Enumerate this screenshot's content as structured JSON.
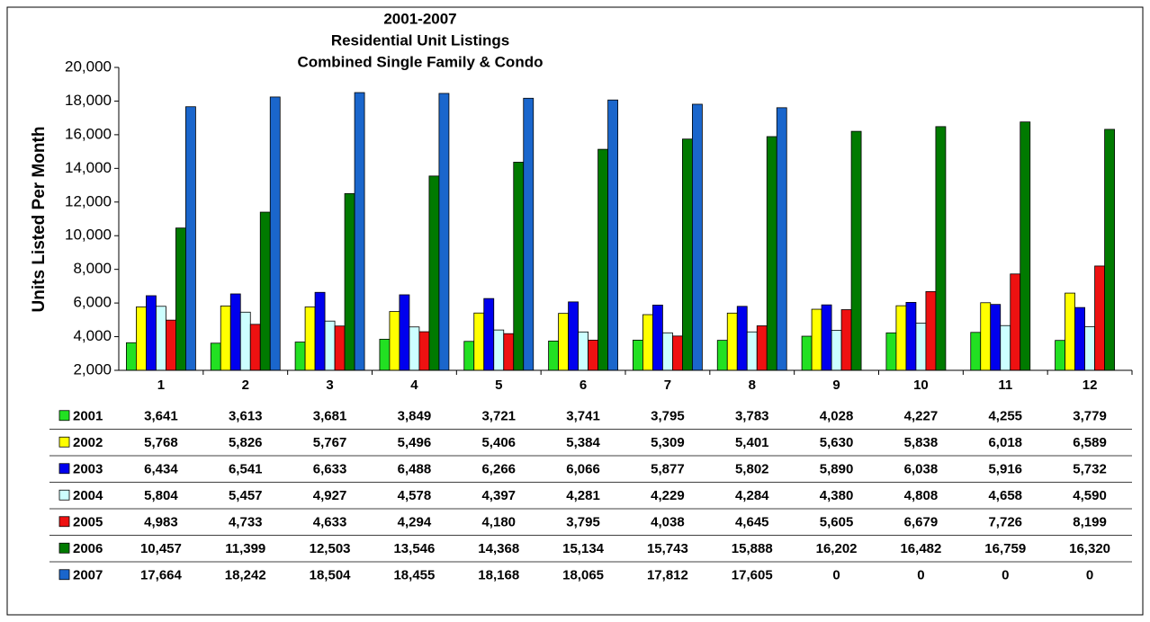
{
  "chart_data": {
    "type": "bar",
    "title_lines": [
      "2001-2007",
      "Residential Unit Listings",
      "Combined Single Family & Condo"
    ],
    "y_label": "Units Listed Per Month",
    "categories": [
      "1",
      "2",
      "3",
      "4",
      "5",
      "6",
      "7",
      "8",
      "9",
      "10",
      "11",
      "12"
    ],
    "ylim": [
      2000,
      20000
    ],
    "yticks": [
      {
        "value": 2000,
        "label": "2,000"
      },
      {
        "value": 4000,
        "label": "4,000"
      },
      {
        "value": 6000,
        "label": "6,000"
      },
      {
        "value": 8000,
        "label": "8,000"
      },
      {
        "value": 10000,
        "label": "10,000"
      },
      {
        "value": 12000,
        "label": "12,000"
      },
      {
        "value": 14000,
        "label": "14,000"
      },
      {
        "value": 16000,
        "label": "16,000"
      },
      {
        "value": 18000,
        "label": "18,000"
      },
      {
        "value": 20000,
        "label": "20,000"
      }
    ],
    "data_table": true,
    "series": [
      {
        "name": "2001",
        "color": "#22e022",
        "values": [
          3641,
          3613,
          3681,
          3849,
          3721,
          3741,
          3795,
          3783,
          4028,
          4227,
          4255,
          3779
        ],
        "value_labels": [
          "3,641",
          "3,613",
          "3,681",
          "3,849",
          "3,721",
          "3,741",
          "3,795",
          "3,783",
          "4,028",
          "4,227",
          "4,255",
          "3,779"
        ]
      },
      {
        "name": "2002",
        "color": "#ffff00",
        "values": [
          5768,
          5826,
          5767,
          5496,
          5406,
          5384,
          5309,
          5401,
          5630,
          5838,
          6018,
          6589
        ],
        "value_labels": [
          "5,768",
          "5,826",
          "5,767",
          "5,496",
          "5,406",
          "5,384",
          "5,309",
          "5,401",
          "5,630",
          "5,838",
          "6,018",
          "6,589"
        ]
      },
      {
        "name": "2003",
        "color": "#0000ee",
        "values": [
          6434,
          6541,
          6633,
          6488,
          6266,
          6066,
          5877,
          5802,
          5890,
          6038,
          5916,
          5732
        ],
        "value_labels": [
          "6,434",
          "6,541",
          "6,633",
          "6,488",
          "6,266",
          "6,066",
          "5,877",
          "5,802",
          "5,890",
          "6,038",
          "5,916",
          "5,732"
        ]
      },
      {
        "name": "2004",
        "color": "#ccffff",
        "values": [
          5804,
          5457,
          4927,
          4578,
          4397,
          4281,
          4229,
          4284,
          4380,
          4808,
          4658,
          4590
        ],
        "value_labels": [
          "5,804",
          "5,457",
          "4,927",
          "4,578",
          "4,397",
          "4,281",
          "4,229",
          "4,284",
          "4,380",
          "4,808",
          "4,658",
          "4,590"
        ]
      },
      {
        "name": "2005",
        "color": "#ee1111",
        "values": [
          4983,
          4733,
          4633,
          4294,
          4180,
          3795,
          4038,
          4645,
          5605,
          6679,
          7726,
          8199
        ],
        "value_labels": [
          "4,983",
          "4,733",
          "4,633",
          "4,294",
          "4,180",
          "3,795",
          "4,038",
          "4,645",
          "5,605",
          "6,679",
          "7,726",
          "8,199"
        ]
      },
      {
        "name": "2006",
        "color": "#007a00",
        "values": [
          10457,
          11399,
          12503,
          13546,
          14368,
          15134,
          15743,
          15888,
          16202,
          16482,
          16759,
          16320
        ],
        "value_labels": [
          "10,457",
          "11,399",
          "12,503",
          "13,546",
          "14,368",
          "15,134",
          "15,743",
          "15,888",
          "16,202",
          "16,482",
          "16,759",
          "16,320"
        ]
      },
      {
        "name": "2007",
        "color": "#1a66cc",
        "values": [
          17664,
          18242,
          18504,
          18455,
          18168,
          18065,
          17812,
          17605,
          0,
          0,
          0,
          0
        ],
        "value_labels": [
          "17,664",
          "18,242",
          "18,504",
          "18,455",
          "18,168",
          "18,065",
          "17,812",
          "17,605",
          "0",
          "0",
          "0",
          "0"
        ]
      }
    ]
  }
}
